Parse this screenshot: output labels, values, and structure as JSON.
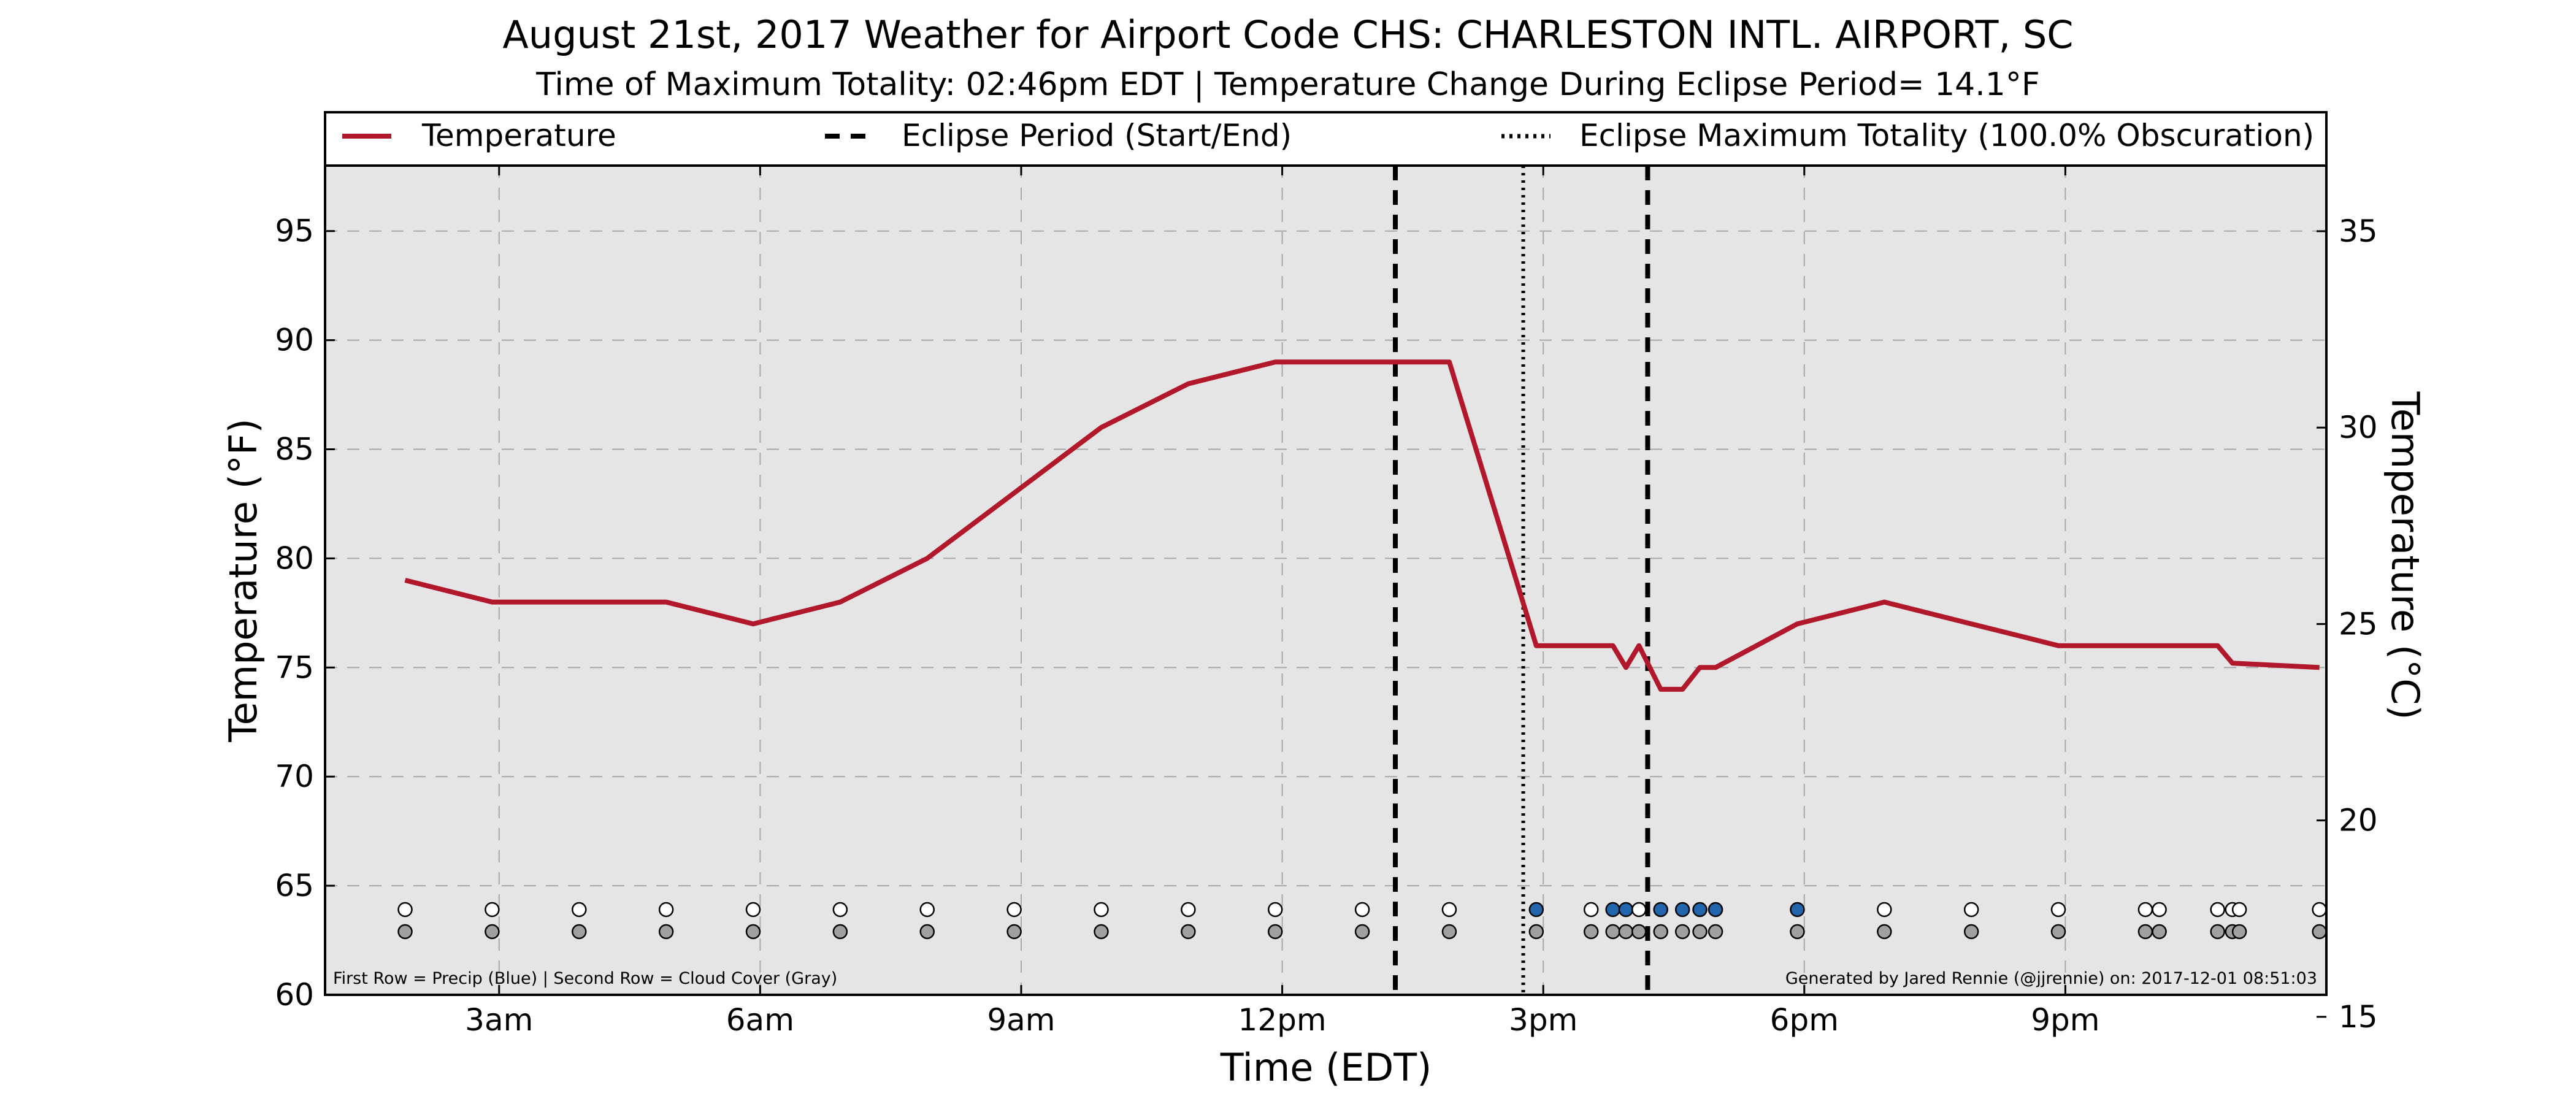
{
  "chart_data": {
    "type": "line",
    "title": "August 21st, 2017 Weather for Airport Code CHS: CHARLESTON INTL. AIRPORT, SC",
    "subtitle": "Time of Maximum Totality: 02:46pm EDT | Temperature Change During Eclipse Period= 14.1°F",
    "xlabel": "Time (EDT)",
    "ylabel": "Temperature (°F)",
    "ylabel_right": "Temperature (°C)",
    "xlim": [
      1,
      24
    ],
    "ylim": [
      60,
      98
    ],
    "ylim_right": [
      15.56,
      36.67
    ],
    "grid": true,
    "legend_position": "top",
    "x_ticks": [
      3,
      6,
      9,
      12,
      15,
      18,
      21
    ],
    "x_tick_labels": [
      "3am",
      "6am",
      "9am",
      "12pm",
      "3pm",
      "6pm",
      "9pm"
    ],
    "y_ticks": [
      60,
      65,
      70,
      75,
      80,
      85,
      90,
      95
    ],
    "y_tick_labels": [
      "60",
      "65",
      "70",
      "75",
      "80",
      "85",
      "90",
      "95"
    ],
    "y_ticks_right": [
      15,
      20,
      25,
      30,
      35
    ],
    "y_tick_labels_right": [
      "15",
      "20",
      "25",
      "30",
      "35"
    ],
    "legend": {
      "temperature": "Temperature",
      "eclipse_period": "Eclipse Period (Start/End)",
      "max_totality": "Eclipse Maximum Totality (100.0% Obscuration)"
    },
    "series": [
      {
        "name": "Temperature",
        "color": "#b2182b",
        "x": [
          1.92,
          2.92,
          3.92,
          4.92,
          5.92,
          6.92,
          7.92,
          8.92,
          9.92,
          10.92,
          11.92,
          12.92,
          13.92,
          14.92,
          15.55,
          15.8,
          15.95,
          16.1,
          16.35,
          16.6,
          16.8,
          16.98,
          17.92,
          18.92,
          19.92,
          20.92,
          21.92,
          22.75,
          22.92,
          23.92
        ],
        "y": [
          79,
          78,
          78,
          78,
          77,
          78,
          80,
          83,
          86,
          88,
          89,
          89,
          89,
          76,
          76,
          76,
          75,
          76,
          74,
          74,
          75,
          75,
          77,
          78,
          77,
          76,
          76,
          76,
          75.2,
          75
        ]
      }
    ],
    "eclipse_start": 13.3,
    "eclipse_end": 16.2,
    "max_totality": 14.77,
    "observations": [
      {
        "x": 1.92,
        "precip": false
      },
      {
        "x": 2.92,
        "precip": false
      },
      {
        "x": 3.92,
        "precip": false
      },
      {
        "x": 4.92,
        "precip": false
      },
      {
        "x": 5.92,
        "precip": false
      },
      {
        "x": 6.92,
        "precip": false
      },
      {
        "x": 7.92,
        "precip": false
      },
      {
        "x": 8.92,
        "precip": false
      },
      {
        "x": 9.92,
        "precip": false
      },
      {
        "x": 10.92,
        "precip": false
      },
      {
        "x": 11.92,
        "precip": false
      },
      {
        "x": 12.92,
        "precip": false
      },
      {
        "x": 13.92,
        "precip": false
      },
      {
        "x": 14.92,
        "precip": true
      },
      {
        "x": 15.55,
        "precip": false
      },
      {
        "x": 15.8,
        "precip": true
      },
      {
        "x": 15.95,
        "precip": true
      },
      {
        "x": 16.1,
        "precip": false
      },
      {
        "x": 16.35,
        "precip": true
      },
      {
        "x": 16.6,
        "precip": true
      },
      {
        "x": 16.8,
        "precip": true
      },
      {
        "x": 16.98,
        "precip": true
      },
      {
        "x": 17.92,
        "precip": true
      },
      {
        "x": 18.92,
        "precip": false
      },
      {
        "x": 19.92,
        "precip": false
      },
      {
        "x": 20.92,
        "precip": false
      },
      {
        "x": 21.92,
        "precip": false
      },
      {
        "x": 22.08,
        "precip": false
      },
      {
        "x": 22.75,
        "precip": false
      },
      {
        "x": 22.92,
        "precip": false
      },
      {
        "x": 23.0,
        "precip": false
      },
      {
        "x": 23.92,
        "precip": false
      }
    ],
    "colors": {
      "plot_background": "#e5e5e5",
      "temperature_line": "#b2182b",
      "precip_dot": "#2166ac",
      "no_precip_dot": "#ffffff",
      "cloud_dot": "#a0a0a0",
      "grid": "#a8a8a8"
    },
    "footnote_left": "First Row = Precip (Blue) | Second Row = Cloud Cover (Gray)",
    "footnote_right": "Generated by Jared Rennie (@jjrennie) on: 2017-12-01 08:51:03"
  }
}
